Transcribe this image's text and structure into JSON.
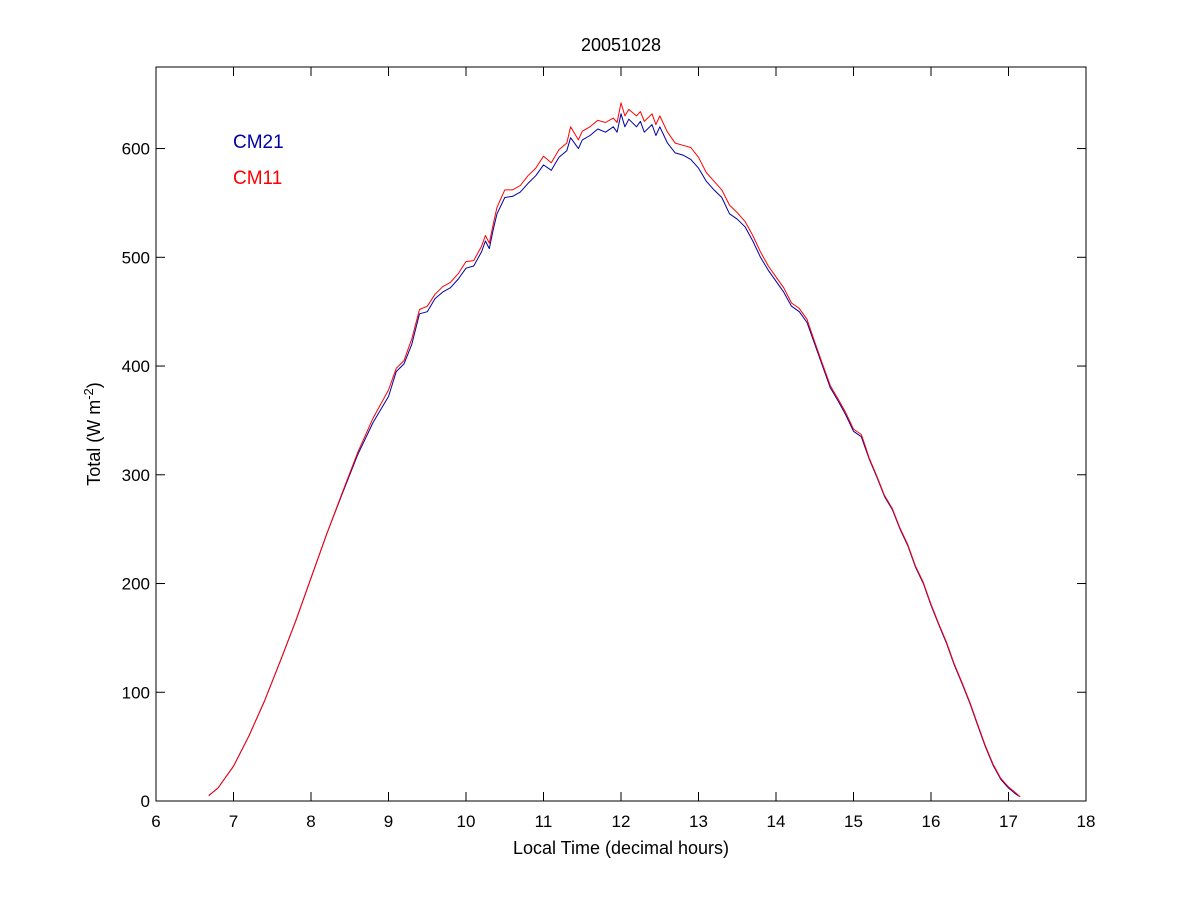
{
  "chart_data": {
    "type": "line",
    "title": "20051028",
    "xlabel": "Local Time (decimal hours)",
    "ylabel": {
      "prefix": "Total (W m",
      "superscript": "-2",
      "suffix": ")"
    },
    "xlim": [
      6,
      18
    ],
    "ylim": [
      0,
      675
    ],
    "xticks": [
      6,
      7,
      8,
      9,
      10,
      11,
      12,
      13,
      14,
      15,
      16,
      17,
      18
    ],
    "yticks": [
      0,
      100,
      200,
      300,
      400,
      500,
      600
    ],
    "grid": false,
    "legend_position": "top-left",
    "series": [
      {
        "name": "CM21",
        "color": "#0000aa",
        "points": [
          [
            6.68,
            5
          ],
          [
            6.8,
            12
          ],
          [
            7.0,
            32
          ],
          [
            7.2,
            60
          ],
          [
            7.4,
            92
          ],
          [
            7.6,
            128
          ],
          [
            7.8,
            165
          ],
          [
            8.0,
            205
          ],
          [
            8.2,
            245
          ],
          [
            8.4,
            282
          ],
          [
            8.6,
            318
          ],
          [
            8.8,
            348
          ],
          [
            9.0,
            372
          ],
          [
            9.1,
            395
          ],
          [
            9.2,
            402
          ],
          [
            9.3,
            420
          ],
          [
            9.4,
            448
          ],
          [
            9.5,
            450
          ],
          [
            9.6,
            462
          ],
          [
            9.7,
            468
          ],
          [
            9.8,
            472
          ],
          [
            9.9,
            480
          ],
          [
            10.0,
            490
          ],
          [
            10.1,
            492
          ],
          [
            10.2,
            505
          ],
          [
            10.25,
            515
          ],
          [
            10.3,
            508
          ],
          [
            10.35,
            525
          ],
          [
            10.4,
            540
          ],
          [
            10.5,
            555
          ],
          [
            10.6,
            556
          ],
          [
            10.7,
            560
          ],
          [
            10.8,
            568
          ],
          [
            10.9,
            575
          ],
          [
            11.0,
            585
          ],
          [
            11.1,
            580
          ],
          [
            11.2,
            592
          ],
          [
            11.3,
            598
          ],
          [
            11.35,
            610
          ],
          [
            11.45,
            600
          ],
          [
            11.5,
            608
          ],
          [
            11.6,
            612
          ],
          [
            11.7,
            618
          ],
          [
            11.8,
            615
          ],
          [
            11.9,
            620
          ],
          [
            11.95,
            615
          ],
          [
            12.0,
            632
          ],
          [
            12.05,
            620
          ],
          [
            12.1,
            627
          ],
          [
            12.2,
            620
          ],
          [
            12.25,
            625
          ],
          [
            12.3,
            615
          ],
          [
            12.4,
            622
          ],
          [
            12.45,
            612
          ],
          [
            12.5,
            620
          ],
          [
            12.6,
            605
          ],
          [
            12.7,
            596
          ],
          [
            12.8,
            594
          ],
          [
            12.9,
            590
          ],
          [
            13.0,
            582
          ],
          [
            13.1,
            570
          ],
          [
            13.2,
            562
          ],
          [
            13.3,
            555
          ],
          [
            13.4,
            540
          ],
          [
            13.5,
            535
          ],
          [
            13.6,
            528
          ],
          [
            13.7,
            515
          ],
          [
            13.8,
            500
          ],
          [
            13.9,
            488
          ],
          [
            14.0,
            478
          ],
          [
            14.1,
            468
          ],
          [
            14.2,
            455
          ],
          [
            14.3,
            450
          ],
          [
            14.4,
            440
          ],
          [
            14.5,
            420
          ],
          [
            14.6,
            400
          ],
          [
            14.7,
            380
          ],
          [
            14.8,
            368
          ],
          [
            14.9,
            355
          ],
          [
            15.0,
            340
          ],
          [
            15.1,
            335
          ],
          [
            15.15,
            325
          ],
          [
            15.2,
            315
          ],
          [
            15.3,
            298
          ],
          [
            15.4,
            280
          ],
          [
            15.5,
            268
          ],
          [
            15.6,
            250
          ],
          [
            15.7,
            235
          ],
          [
            15.8,
            215
          ],
          [
            15.9,
            200
          ],
          [
            16.0,
            180
          ],
          [
            16.1,
            162
          ],
          [
            16.2,
            145
          ],
          [
            16.3,
            125
          ],
          [
            16.4,
            108
          ],
          [
            16.5,
            90
          ],
          [
            16.6,
            70
          ],
          [
            16.7,
            50
          ],
          [
            16.8,
            33
          ],
          [
            16.9,
            20
          ],
          [
            17.0,
            12
          ],
          [
            17.1,
            6
          ],
          [
            17.15,
            4
          ]
        ]
      },
      {
        "name": "CM11",
        "color": "#ff0000",
        "points": [
          [
            6.68,
            5
          ],
          [
            6.8,
            12
          ],
          [
            7.0,
            32
          ],
          [
            7.2,
            60
          ],
          [
            7.4,
            92
          ],
          [
            7.6,
            128
          ],
          [
            7.8,
            165
          ],
          [
            8.0,
            205
          ],
          [
            8.2,
            245
          ],
          [
            8.4,
            283
          ],
          [
            8.6,
            320
          ],
          [
            8.8,
            352
          ],
          [
            9.0,
            378
          ],
          [
            9.1,
            398
          ],
          [
            9.2,
            405
          ],
          [
            9.3,
            425
          ],
          [
            9.4,
            452
          ],
          [
            9.5,
            455
          ],
          [
            9.6,
            466
          ],
          [
            9.7,
            473
          ],
          [
            9.8,
            477
          ],
          [
            9.9,
            485
          ],
          [
            10.0,
            496
          ],
          [
            10.1,
            497
          ],
          [
            10.2,
            510
          ],
          [
            10.25,
            520
          ],
          [
            10.3,
            513
          ],
          [
            10.35,
            530
          ],
          [
            10.4,
            546
          ],
          [
            10.5,
            562
          ],
          [
            10.6,
            562
          ],
          [
            10.7,
            566
          ],
          [
            10.8,
            575
          ],
          [
            10.9,
            582
          ],
          [
            11.0,
            593
          ],
          [
            11.1,
            587
          ],
          [
            11.2,
            599
          ],
          [
            11.3,
            605
          ],
          [
            11.35,
            620
          ],
          [
            11.45,
            608
          ],
          [
            11.5,
            616
          ],
          [
            11.6,
            620
          ],
          [
            11.7,
            626
          ],
          [
            11.8,
            624
          ],
          [
            11.9,
            628
          ],
          [
            11.95,
            624
          ],
          [
            12.0,
            642
          ],
          [
            12.05,
            630
          ],
          [
            12.1,
            636
          ],
          [
            12.2,
            630
          ],
          [
            12.25,
            634
          ],
          [
            12.3,
            625
          ],
          [
            12.4,
            632
          ],
          [
            12.45,
            622
          ],
          [
            12.5,
            630
          ],
          [
            12.6,
            615
          ],
          [
            12.7,
            605
          ],
          [
            12.8,
            603
          ],
          [
            12.9,
            601
          ],
          [
            13.0,
            592
          ],
          [
            13.1,
            578
          ],
          [
            13.2,
            570
          ],
          [
            13.3,
            562
          ],
          [
            13.4,
            548
          ],
          [
            13.5,
            541
          ],
          [
            13.6,
            533
          ],
          [
            13.7,
            520
          ],
          [
            13.8,
            505
          ],
          [
            13.9,
            492
          ],
          [
            14.0,
            482
          ],
          [
            14.1,
            472
          ],
          [
            14.2,
            458
          ],
          [
            14.3,
            453
          ],
          [
            14.4,
            443
          ],
          [
            14.5,
            422
          ],
          [
            14.6,
            402
          ],
          [
            14.7,
            382
          ],
          [
            14.8,
            370
          ],
          [
            14.9,
            357
          ],
          [
            15.0,
            342
          ],
          [
            15.1,
            337
          ],
          [
            15.15,
            327
          ],
          [
            15.2,
            316
          ],
          [
            15.3,
            299
          ],
          [
            15.4,
            281
          ],
          [
            15.5,
            269
          ],
          [
            15.6,
            251
          ],
          [
            15.7,
            236
          ],
          [
            15.8,
            216
          ],
          [
            15.9,
            201
          ],
          [
            16.0,
            181
          ],
          [
            16.1,
            163
          ],
          [
            16.2,
            146
          ],
          [
            16.3,
            126
          ],
          [
            16.4,
            109
          ],
          [
            16.5,
            91
          ],
          [
            16.6,
            71
          ],
          [
            16.7,
            51
          ],
          [
            16.8,
            34
          ],
          [
            16.9,
            21
          ],
          [
            17.0,
            13
          ],
          [
            17.1,
            7
          ],
          [
            17.15,
            4
          ]
        ]
      }
    ]
  }
}
